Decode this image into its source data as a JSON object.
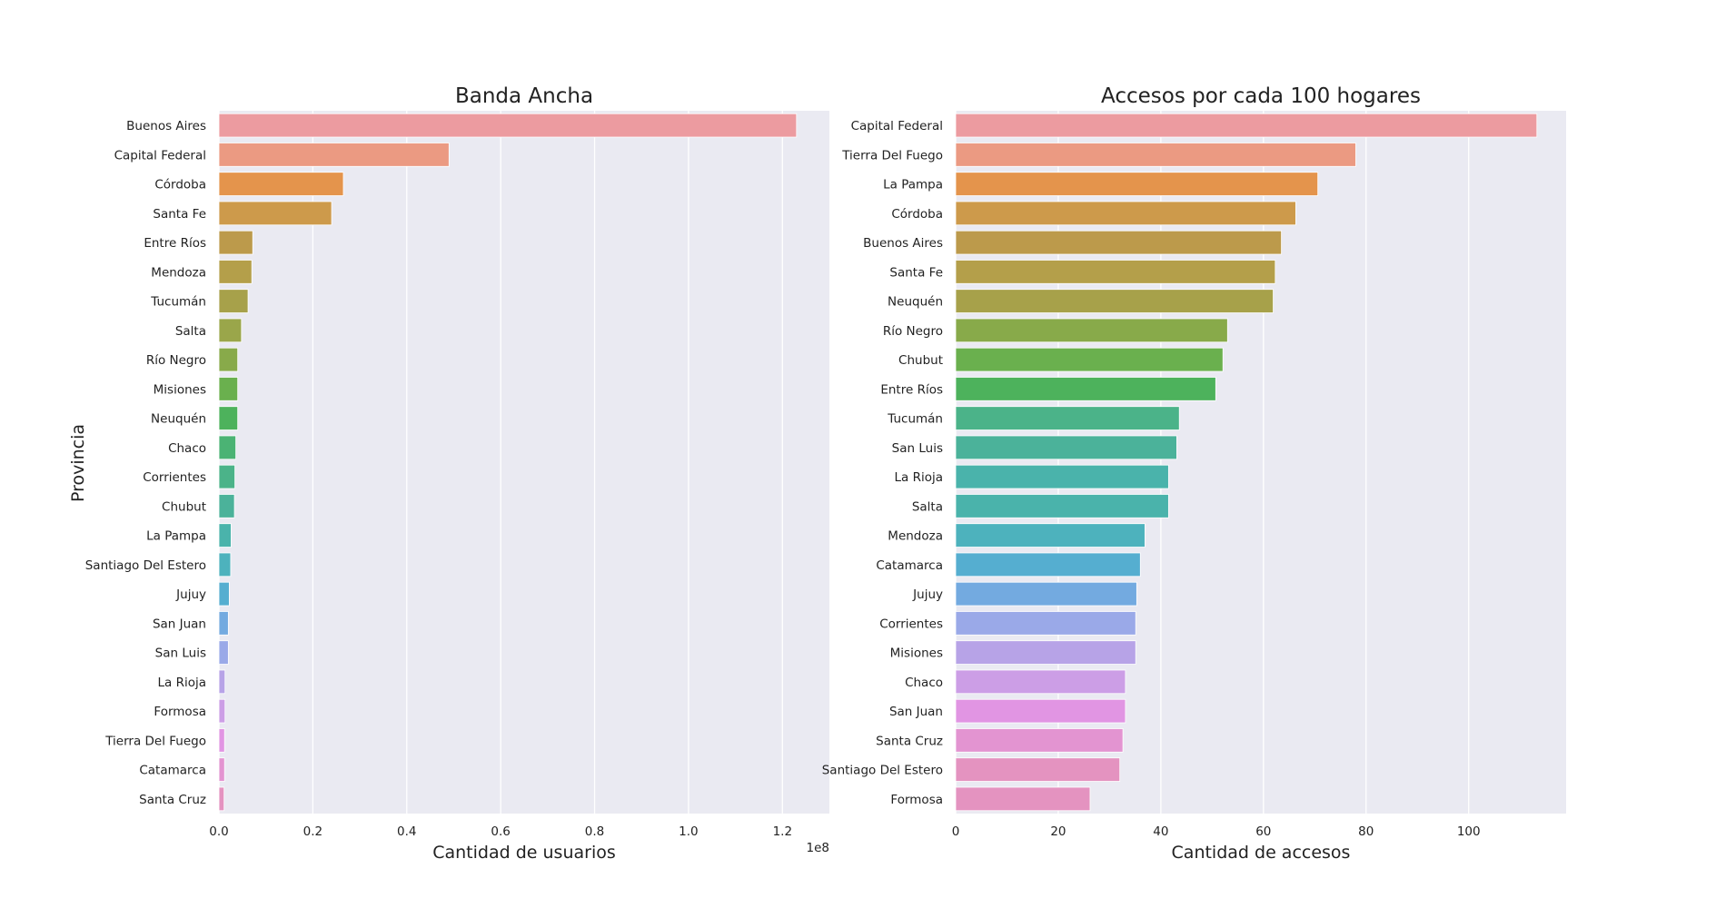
{
  "chart_data": [
    {
      "type": "bar",
      "orientation": "horizontal",
      "title": "Banda Ancha",
      "xlabel": "Cantidad de usuarios",
      "ylabel": "Provincia",
      "x_offset_label": "1e8",
      "xlim": [
        0,
        1.3
      ],
      "xticks": [
        "0.0",
        "0.2",
        "0.4",
        "0.6",
        "0.8",
        "1.0",
        "1.2"
      ],
      "xtick_values": [
        0,
        0.2,
        0.4,
        0.6,
        0.8,
        1.0,
        1.2
      ],
      "grid": true,
      "categories": [
        "Buenos Aires",
        "Capital Federal",
        "Córdoba",
        "Santa Fe",
        "Entre Ríos",
        "Mendoza",
        "Tucumán",
        "Salta",
        "Río Negro",
        "Misiones",
        "Neuquén",
        "Chaco",
        "Corrientes",
        "Chubut",
        "La Pampa",
        "Santiago Del Estero",
        "Jujuy",
        "San Juan",
        "San Luis",
        "La Rioja",
        "Formosa",
        "Tierra Del Fuego",
        "Catamarca",
        "Santa Cruz"
      ],
      "values": [
        1.23,
        0.49,
        0.265,
        0.24,
        0.072,
        0.07,
        0.062,
        0.048,
        0.04,
        0.04,
        0.04,
        0.036,
        0.034,
        0.033,
        0.026,
        0.025,
        0.022,
        0.02,
        0.02,
        0.013,
        0.013,
        0.012,
        0.012,
        0.011
      ],
      "colors": [
        "#ec9ba0",
        "#eb9a82",
        "#e4944c",
        "#cd9a4b",
        "#bc9a4b",
        "#b49f4a",
        "#a7a14a",
        "#9aa64a",
        "#88aa4a",
        "#6ab04e",
        "#4db25c",
        "#4bb374",
        "#4bb389",
        "#4bb29a",
        "#4ab3ab",
        "#4db2bd",
        "#55aed0",
        "#73aae0",
        "#9aa9e8",
        "#b7a3e7",
        "#cc9ee6",
        "#e195e3",
        "#e394d1",
        "#e493c0"
      ]
    },
    {
      "type": "bar",
      "orientation": "horizontal",
      "title": "Accesos por cada 100 hogares",
      "xlabel": "Cantidad de accesos",
      "ylabel": "",
      "xlim": [
        0,
        119
      ],
      "xticks": [
        "0",
        "20",
        "40",
        "60",
        "80",
        "100"
      ],
      "xtick_values": [
        0,
        20,
        40,
        60,
        80,
        100
      ],
      "grid": true,
      "categories": [
        "Capital Federal",
        "Tierra Del Fuego",
        "La Pampa",
        "Córdoba",
        "Buenos Aires",
        "Santa Fe",
        "Neuquén",
        "Río Negro",
        "Chubut",
        "Entre Ríos",
        "Tucumán",
        "San Luis",
        "La Rioja",
        "Salta",
        "Mendoza",
        "Catamarca",
        "Jujuy",
        "Corrientes",
        "Misiones",
        "Chaco",
        "San Juan",
        "Santa Cruz",
        "Santiago Del Estero",
        "Formosa"
      ],
      "values": [
        113.3,
        78.0,
        70.6,
        66.3,
        63.5,
        62.3,
        61.9,
        53.0,
        52.1,
        50.7,
        43.6,
        43.1,
        41.5,
        41.5,
        36.9,
        36.0,
        35.3,
        35.1,
        35.1,
        33.1,
        33.1,
        32.6,
        32.0,
        26.2
      ],
      "colors": [
        "#ec9ba0",
        "#eb9a82",
        "#e4944c",
        "#cd9a4b",
        "#bc9a4b",
        "#b49f4a",
        "#a7a14a",
        "#88aa4a",
        "#6ab04e",
        "#4db25c",
        "#4bb389",
        "#4bb29a",
        "#4ab3ab",
        "#4ab3ab",
        "#4db2bd",
        "#55aed0",
        "#73aae0",
        "#9aa9e8",
        "#b7a3e7",
        "#cc9ee6",
        "#e195e3",
        "#e394d1",
        "#e493c0",
        "#e493c0"
      ]
    }
  ]
}
